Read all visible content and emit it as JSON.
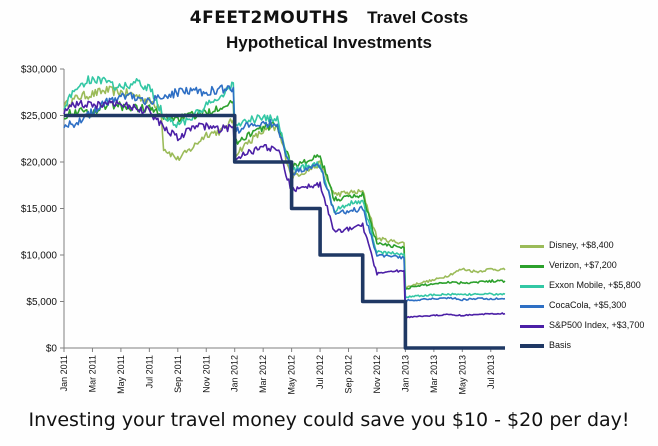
{
  "title": {
    "brand": "4FEET2MOUTHS",
    "line1_rest": "Travel Costs",
    "line2": "Hypothetical Investments"
  },
  "footer": "Investing your travel money could save you $10 - $20 per day!",
  "chart_data": {
    "type": "line",
    "x_unit": "month",
    "x_range": [
      "2011-01",
      "2013-08"
    ],
    "xticks": [
      "Jan 2011",
      "Mar 2011",
      "May 2011",
      "Jul 2011",
      "Sep 2011",
      "Nov 2011",
      "Jan 2012",
      "Mar 2012",
      "May 2012",
      "Jul 2012",
      "Sep 2012",
      "Nov 2012",
      "Jan 2013",
      "Mar 2013",
      "May 2013",
      "Jul 2013"
    ],
    "yticks": [
      "$0",
      "$5,000",
      "$10,000",
      "$15,000",
      "$20,000",
      "$25,000",
      "$30,000"
    ],
    "ylim": [
      0,
      30000
    ],
    "legend_position": "right",
    "grid": false,
    "series": [
      {
        "name": "Disney, +$8,400",
        "color": "#9bbb59",
        "x": [
          "2011-01",
          "2011-02",
          "2011-03",
          "2011-04",
          "2011-05",
          "2011-06",
          "2011-07",
          "2011-07-25",
          "2011-08",
          "2011-09",
          "2011-10",
          "2011-11",
          "2011-12",
          "2011-12-28",
          "2012-01",
          "2012-02",
          "2012-03",
          "2012-04",
          "2012-05",
          "2012-06",
          "2012-07",
          "2012-08",
          "2012-09",
          "2012-10",
          "2012-11",
          "2012-12",
          "2012-12-28",
          "2013-01",
          "2013-02",
          "2013-03",
          "2013-04",
          "2013-05",
          "2013-06",
          "2013-07",
          "2013-08"
        ],
        "y": [
          26000,
          27000,
          27300,
          27700,
          27500,
          27200,
          26500,
          26000,
          21500,
          20300,
          21500,
          23000,
          23300,
          24500,
          20800,
          22200,
          23300,
          23700,
          18500,
          19000,
          19800,
          16500,
          16700,
          16800,
          11800,
          11500,
          11300,
          6500,
          7000,
          7300,
          7800,
          8500,
          8200,
          8500,
          8400
        ]
      },
      {
        "name": "Verizon, +$7,200",
        "color": "#2ca02c",
        "x": [
          "2011-01",
          "2011-02",
          "2011-03",
          "2011-04",
          "2011-05",
          "2011-06",
          "2011-07",
          "2011-08",
          "2011-09",
          "2011-10",
          "2011-11",
          "2011-12",
          "2011-12-28",
          "2012-01",
          "2012-02",
          "2012-03",
          "2012-04",
          "2012-05",
          "2012-06",
          "2012-07",
          "2012-08",
          "2012-09",
          "2012-10",
          "2012-11",
          "2012-12",
          "2012-12-28",
          "2013-01",
          "2013-02",
          "2013-03",
          "2013-04",
          "2013-05",
          "2013-06",
          "2013-07",
          "2013-08"
        ],
        "y": [
          25000,
          25500,
          25200,
          26200,
          26000,
          25800,
          25800,
          24800,
          24700,
          25000,
          25300,
          26000,
          26500,
          22000,
          23000,
          23700,
          24000,
          19600,
          20000,
          20600,
          16000,
          16200,
          16500,
          11200,
          11000,
          10800,
          6400,
          6700,
          6900,
          7100,
          7000,
          7100,
          7200,
          7200
        ]
      },
      {
        "name": "Exxon Mobile, +$5,800",
        "color": "#33c7a4",
        "x": [
          "2011-01",
          "2011-02",
          "2011-03",
          "2011-04",
          "2011-05",
          "2011-06",
          "2011-07",
          "2011-08",
          "2011-09",
          "2011-10",
          "2011-11",
          "2011-12",
          "2011-12-28",
          "2012-01",
          "2012-02",
          "2012-03",
          "2012-04",
          "2012-05",
          "2012-06",
          "2012-07",
          "2012-08",
          "2012-09",
          "2012-10",
          "2012-11",
          "2012-12",
          "2012-12-28",
          "2013-01",
          "2013-02",
          "2013-03",
          "2013-04",
          "2013-05",
          "2013-06",
          "2013-07",
          "2013-08"
        ],
        "y": [
          26000,
          28200,
          29000,
          28500,
          28000,
          28500,
          28000,
          25000,
          24000,
          24800,
          26000,
          27000,
          28500,
          23800,
          24500,
          24700,
          24600,
          19000,
          19500,
          19800,
          14800,
          15500,
          15800,
          10300,
          10200,
          10100,
          5500,
          5600,
          5700,
          5800,
          5700,
          5800,
          5800,
          5800
        ]
      },
      {
        "name": "CocaCola, +$5,300",
        "color": "#2e6fc4",
        "x": [
          "2011-01",
          "2011-02",
          "2011-03",
          "2011-04",
          "2011-05",
          "2011-06",
          "2011-07",
          "2011-08",
          "2011-09",
          "2011-10",
          "2011-11",
          "2011-12",
          "2011-12-28",
          "2012-01",
          "2012-02",
          "2012-03",
          "2012-04",
          "2012-05",
          "2012-06",
          "2012-07",
          "2012-08",
          "2012-09",
          "2012-10",
          "2012-11",
          "2012-12",
          "2012-12-28",
          "2013-01",
          "2013-02",
          "2013-03",
          "2013-04",
          "2013-05",
          "2013-06",
          "2013-07",
          "2013-08"
        ],
        "y": [
          24000,
          24200,
          25400,
          26500,
          27000,
          27000,
          26500,
          27000,
          27500,
          27800,
          27500,
          27800,
          28000,
          23300,
          24000,
          24200,
          24100,
          18800,
          19200,
          19600,
          14500,
          14700,
          15000,
          10000,
          9800,
          9700,
          5100,
          5200,
          5300,
          5400,
          5200,
          5300,
          5300,
          5300
        ]
      },
      {
        "name": "S&P500 Index, +$3,700",
        "color": "#4b1fa6",
        "x": [
          "2011-01",
          "2011-02",
          "2011-03",
          "2011-04",
          "2011-05",
          "2011-06",
          "2011-07",
          "2011-08",
          "2011-09",
          "2011-10",
          "2011-11",
          "2011-12",
          "2011-12-28",
          "2012-01",
          "2012-02",
          "2012-03",
          "2012-04",
          "2012-05",
          "2012-06",
          "2012-07",
          "2012-08",
          "2012-09",
          "2012-10",
          "2012-11",
          "2012-12",
          "2012-12-28",
          "2013-01",
          "2013-02",
          "2013-03",
          "2013-04",
          "2013-05",
          "2013-06",
          "2013-07",
          "2013-08"
        ],
        "y": [
          25500,
          26300,
          26000,
          26500,
          26200,
          25800,
          25500,
          23800,
          22500,
          23800,
          23800,
          23500,
          23800,
          20500,
          21000,
          21500,
          21600,
          17000,
          17300,
          17600,
          12500,
          12800,
          13200,
          8000,
          8200,
          8300,
          3300,
          3400,
          3500,
          3600,
          3500,
          3600,
          3700,
          3700
        ]
      },
      {
        "name": "Basis",
        "color": "#1f3864",
        "x": [
          "2011-01",
          "2012-01",
          "2012-01",
          "2012-05",
          "2012-05",
          "2012-07",
          "2012-07",
          "2012-10",
          "2012-10",
          "2013-01",
          "2013-01",
          "2013-08"
        ],
        "y": [
          25000,
          25000,
          20000,
          20000,
          15000,
          15000,
          10000,
          10000,
          5000,
          5000,
          0,
          0
        ]
      }
    ]
  }
}
